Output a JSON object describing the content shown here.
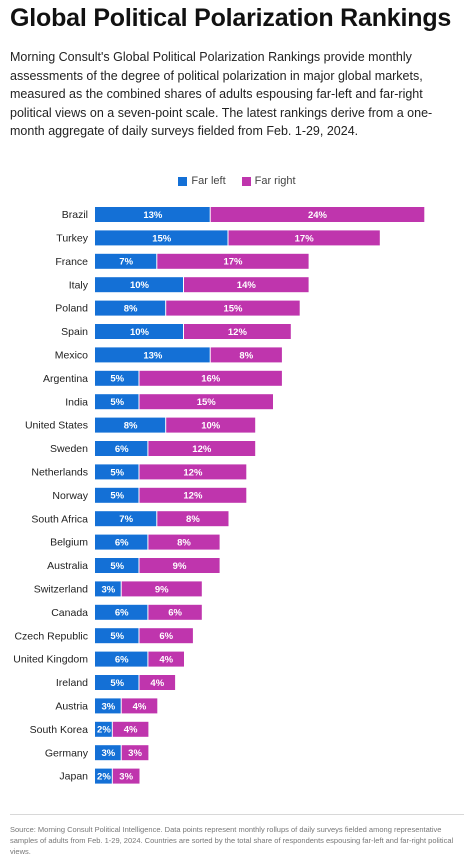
{
  "header": {
    "title": "Global Political Polarization Rankings",
    "description": "Morning Consult's Global Political Polarization Rankings provide monthly assessments of the degree of political polarization in major global markets, measured as the combined shares of adults espousing far-left and far-right political views on a seven-point scale. The latest rankings derive from a one-month aggregate of daily surveys fielded from Feb. 1-29, 2024."
  },
  "footer": {
    "source": "Source: Morning Consult Political Intelligence. Data points represent monthly rollups of daily surveys fielded among representative samples of adults from Feb. 1-29, 2024. Countries are sorted by the total share of respondents espousing far-left and far-right political views."
  },
  "colors": {
    "far_left": "#1470d6",
    "far_right": "#bf35ad"
  },
  "chart_data": {
    "type": "bar",
    "orientation": "horizontal",
    "stacked": true,
    "legend_position": "top-center",
    "grid": false,
    "value_suffix": "%",
    "legend": [
      "Far left",
      "Far right"
    ],
    "categories": [
      "Brazil",
      "Turkey",
      "France",
      "Italy",
      "Poland",
      "Spain",
      "Mexico",
      "Argentina",
      "India",
      "United States",
      "Sweden",
      "Netherlands",
      "Norway",
      "South Africa",
      "Belgium",
      "Australia",
      "Switzerland",
      "Canada",
      "Czech Republic",
      "United Kingdom",
      "Ireland",
      "Austria",
      "South Korea",
      "Germany",
      "Japan"
    ],
    "series": [
      {
        "name": "Far left",
        "values": [
          13,
          15,
          7,
          10,
          8,
          10,
          13,
          5,
          5,
          8,
          6,
          5,
          5,
          7,
          6,
          5,
          3,
          6,
          5,
          6,
          5,
          3,
          2,
          3,
          2
        ]
      },
      {
        "name": "Far right",
        "values": [
          24,
          17,
          17,
          14,
          15,
          12,
          8,
          16,
          15,
          10,
          12,
          12,
          12,
          8,
          8,
          9,
          9,
          6,
          6,
          4,
          4,
          4,
          4,
          3,
          3
        ]
      }
    ]
  }
}
